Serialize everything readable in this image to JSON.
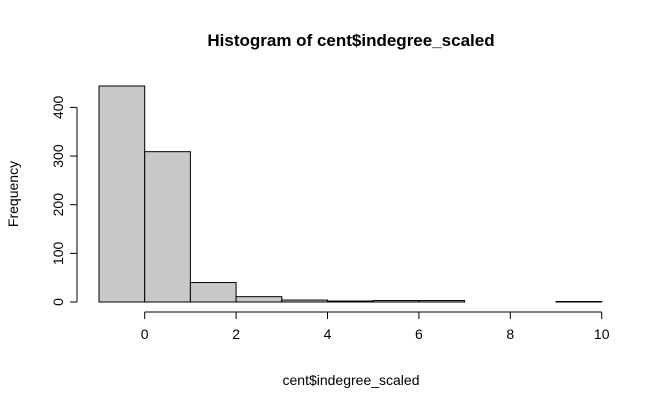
{
  "chart_data": {
    "type": "bar",
    "title": "Histogram of cent$indegree_scaled",
    "xlabel": "cent$indegree_scaled",
    "ylabel": "Frequency",
    "bins": [
      {
        "start": -1,
        "end": 0,
        "count": 444
      },
      {
        "start": 0,
        "end": 1,
        "count": 309
      },
      {
        "start": 1,
        "end": 2,
        "count": 40
      },
      {
        "start": 2,
        "end": 3,
        "count": 11
      },
      {
        "start": 3,
        "end": 4,
        "count": 4
      },
      {
        "start": 4,
        "end": 5,
        "count": 2
      },
      {
        "start": 5,
        "end": 6,
        "count": 3
      },
      {
        "start": 6,
        "end": 7,
        "count": 3
      },
      {
        "start": 7,
        "end": 8,
        "count": 0
      },
      {
        "start": 8,
        "end": 9,
        "count": 0
      },
      {
        "start": 9,
        "end": 10,
        "count": 1
      }
    ],
    "xlim": [
      -1,
      10
    ],
    "ylim": [
      0,
      444
    ],
    "xticks": [
      0,
      2,
      4,
      6,
      8,
      10
    ],
    "yticks": [
      0,
      100,
      200,
      300,
      400
    ],
    "bar_color": "#c8c8c8",
    "grid": false,
    "legend": "none"
  }
}
